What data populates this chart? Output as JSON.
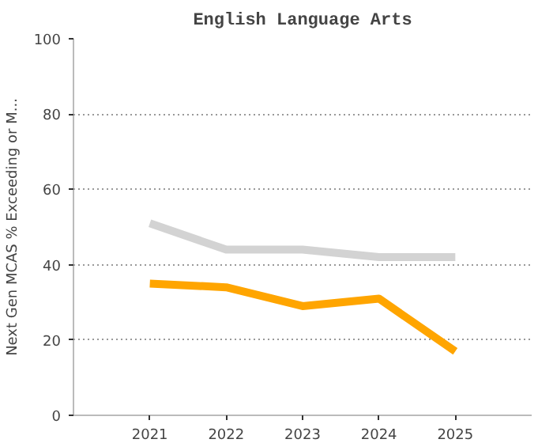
{
  "chart_data": {
    "type": "line",
    "title": "English Language Arts",
    "ylabel": "Next Gen MCAS % Exceeding or M...",
    "categories": [
      "2021",
      "2022",
      "2023",
      "2024",
      "2025"
    ],
    "series": [
      {
        "color": "#d3d3d3",
        "values": [
          51,
          44,
          44,
          42,
          42
        ]
      },
      {
        "color": "#ffa500",
        "values": [
          35,
          34,
          29,
          31,
          17
        ]
      }
    ],
    "ylim": [
      0,
      100
    ],
    "yticks": [
      0,
      20,
      40,
      60,
      80,
      100
    ],
    "grid": "y",
    "marker": "none",
    "line_style": "solid"
  }
}
